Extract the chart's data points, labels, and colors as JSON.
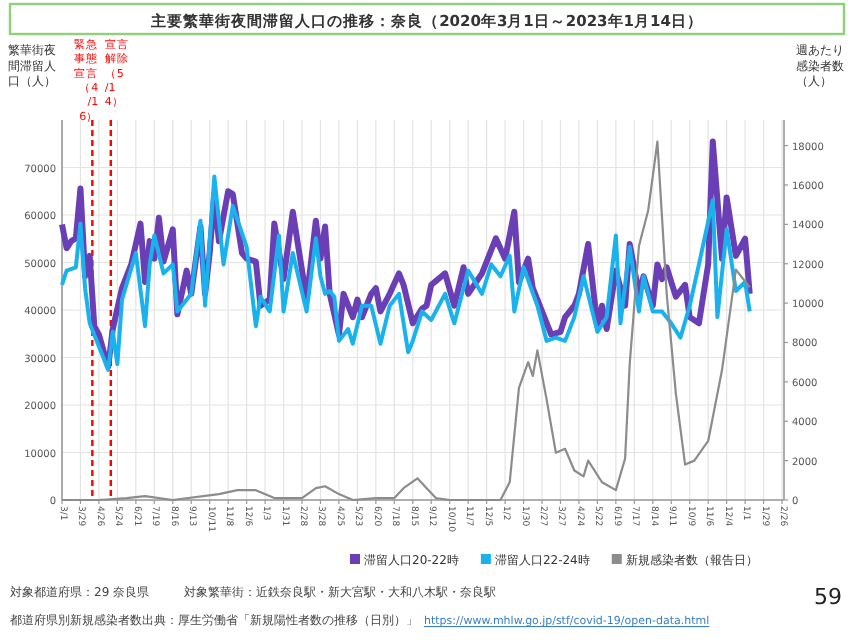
{
  "chart_data": {
    "type": "line",
    "title": "主要繁華街夜間滞留人口の推移：奈良（2020年3月1日～2023年1月14日）",
    "ylabel": "繁華街夜間滞留人口（人）",
    "y2label": "週あたり感染者数（人）",
    "xlim": [
      "2020-03-01",
      "2023-03-01"
    ],
    "xticks": [
      {
        "value": "2020-03-01",
        "label": "3/1"
      },
      {
        "value": "2020-03-29",
        "label": "3/29"
      },
      {
        "value": "2020-04-26",
        "label": "4/26"
      },
      {
        "value": "2020-05-24",
        "label": "5/24"
      },
      {
        "value": "2020-06-21",
        "label": "6/21"
      },
      {
        "value": "2020-07-19",
        "label": "7/19"
      },
      {
        "value": "2020-08-16",
        "label": "8/16"
      },
      {
        "value": "2020-09-13",
        "label": "9/13"
      },
      {
        "value": "2020-10-11",
        "label": "10/11"
      },
      {
        "value": "2020-11-08",
        "label": "11/8"
      },
      {
        "value": "2020-12-06",
        "label": "12/6"
      },
      {
        "value": "2021-01-03",
        "label": "1/3"
      },
      {
        "value": "2021-01-31",
        "label": "1/31"
      },
      {
        "value": "2021-02-28",
        "label": "2/28"
      },
      {
        "value": "2021-03-28",
        "label": "3/28"
      },
      {
        "value": "2021-04-25",
        "label": "4/25"
      },
      {
        "value": "2021-05-23",
        "label": "5/23"
      },
      {
        "value": "2021-06-20",
        "label": "6/20"
      },
      {
        "value": "2021-07-18",
        "label": "7/18"
      },
      {
        "value": "2021-08-15",
        "label": "8/15"
      },
      {
        "value": "2021-09-12",
        "label": "9/12"
      },
      {
        "value": "2021-10-10",
        "label": "10/10"
      },
      {
        "value": "2021-11-07",
        "label": "11/7"
      },
      {
        "value": "2021-12-05",
        "label": "12/5"
      },
      {
        "value": "2022-01-02",
        "label": "1/2"
      },
      {
        "value": "2022-01-30",
        "label": "1/30"
      },
      {
        "value": "2022-02-27",
        "label": "2/27"
      },
      {
        "value": "2022-03-27",
        "label": "3/27"
      },
      {
        "value": "2022-04-24",
        "label": "4/24"
      },
      {
        "value": "2022-05-22",
        "label": "5/22"
      },
      {
        "value": "2022-06-19",
        "label": "6/19"
      },
      {
        "value": "2022-07-17",
        "label": "7/17"
      },
      {
        "value": "2022-08-14",
        "label": "8/14"
      },
      {
        "value": "2022-09-11",
        "label": "9/11"
      },
      {
        "value": "2022-10-09",
        "label": "10/9"
      },
      {
        "value": "2022-11-06",
        "label": "11/6"
      },
      {
        "value": "2022-12-04",
        "label": "12/4"
      },
      {
        "value": "2023-01-01",
        "label": "1/1"
      },
      {
        "value": "2023-01-29",
        "label": "1/29"
      },
      {
        "value": "2023-02-26",
        "label": "2/26"
      }
    ],
    "ylim": [
      0,
      80000
    ],
    "yticks": [
      0,
      10000,
      20000,
      30000,
      40000,
      50000,
      60000,
      70000
    ],
    "y2lim": [
      0,
      19300
    ],
    "y2ticks": [
      0,
      2000,
      4000,
      6000,
      8000,
      10000,
      12000,
      14000,
      16000,
      18000
    ],
    "grid": true,
    "legend": "bottom",
    "line_style": "solid",
    "series": [
      {
        "name": "滞留人口20-22時",
        "color": "#6a3fb5",
        "x": [
          "2020-03-01",
          "2020-03-08",
          "2020-03-15",
          "2020-03-22",
          "2020-03-29",
          "2020-04-05",
          "2020-04-12",
          "2020-04-19",
          "2020-04-26",
          "2020-05-10",
          "2020-05-17",
          "2020-05-31",
          "2020-06-14",
          "2020-06-28",
          "2020-07-05",
          "2020-07-12",
          "2020-07-19",
          "2020-07-26",
          "2020-08-02",
          "2020-08-16",
          "2020-08-23",
          "2020-09-06",
          "2020-09-13",
          "2020-09-27",
          "2020-10-04",
          "2020-10-11",
          "2020-10-18",
          "2020-10-25",
          "2020-11-08",
          "2020-11-15",
          "2020-11-29",
          "2020-12-06",
          "2020-12-20",
          "2020-12-27",
          "2021-01-10",
          "2021-01-17",
          "2021-01-31",
          "2021-02-14",
          "2021-03-07",
          "2021-03-21",
          "2021-03-28",
          "2021-04-04",
          "2021-04-11",
          "2021-04-25",
          "2021-05-02",
          "2021-05-16",
          "2021-05-23",
          "2021-05-30",
          "2021-06-13",
          "2021-06-20",
          "2021-06-27",
          "2021-07-11",
          "2021-07-25",
          "2021-08-01",
          "2021-08-15",
          "2021-08-29",
          "2021-09-05",
          "2021-09-12",
          "2021-10-03",
          "2021-10-17",
          "2021-10-31",
          "2021-11-07",
          "2021-11-28",
          "2021-12-19",
          "2022-01-02",
          "2022-01-16",
          "2022-01-23",
          "2022-02-06",
          "2022-02-13",
          "2022-02-20",
          "2022-03-13",
          "2022-03-27",
          "2022-04-03",
          "2022-04-17",
          "2022-04-24",
          "2022-05-08",
          "2022-05-22",
          "2022-05-29",
          "2022-06-05",
          "2022-06-19",
          "2022-07-03",
          "2022-07-10",
          "2022-07-24",
          "2022-07-31",
          "2022-08-14",
          "2022-08-21",
          "2022-08-28",
          "2022-09-04",
          "2022-09-18",
          "2022-10-02",
          "2022-10-09",
          "2022-10-23",
          "2022-11-06",
          "2022-11-13",
          "2022-11-27",
          "2022-12-04",
          "2022-12-18",
          "2023-01-01",
          "2023-01-08"
        ],
        "values": [
          58000,
          53000,
          54500,
          55100,
          65600,
          47100,
          51400,
          36600,
          34800,
          28000,
          36000,
          44600,
          49600,
          58200,
          45900,
          54500,
          50800,
          59400,
          50200,
          57000,
          39100,
          48300,
          43400,
          57600,
          43400,
          52000,
          64400,
          54500,
          65000,
          64400,
          52000,
          50800,
          50200,
          40900,
          42200,
          58200,
          46500,
          60700,
          42200,
          58800,
          50800,
          57600,
          43400,
          34800,
          43400,
          38500,
          42200,
          38500,
          43400,
          44600,
          39700,
          43400,
          47700,
          45300,
          37200,
          40300,
          40900,
          45300,
          47700,
          40900,
          49000,
          43400,
          47700,
          55100,
          50800,
          60700,
          45900,
          50800,
          44600,
          42200,
          34800,
          35400,
          38500,
          40900,
          43400,
          53900,
          36600,
          40900,
          36000,
          48300,
          40900,
          53900,
          43400,
          47100,
          40900,
          49600,
          46500,
          49000,
          42800,
          45300,
          38500,
          37200,
          49600,
          75500,
          50800,
          63700,
          51400,
          55000,
          43400
        ]
      },
      {
        "name": "滞留人口22-24時",
        "color": "#1ab2ec",
        "x": [
          "2020-03-01",
          "2020-03-08",
          "2020-03-22",
          "2020-03-29",
          "2020-04-05",
          "2020-04-12",
          "2020-05-10",
          "2020-05-17",
          "2020-05-24",
          "2020-05-31",
          "2020-06-21",
          "2020-07-05",
          "2020-07-12",
          "2020-07-19",
          "2020-08-02",
          "2020-08-16",
          "2020-08-23",
          "2020-09-13",
          "2020-09-27",
          "2020-10-04",
          "2020-10-18",
          "2020-11-01",
          "2020-11-15",
          "2020-12-06",
          "2020-12-20",
          "2020-12-27",
          "2021-01-10",
          "2021-01-24",
          "2021-01-31",
          "2021-02-14",
          "2021-03-07",
          "2021-03-21",
          "2021-03-28",
          "2021-04-04",
          "2021-04-11",
          "2021-04-18",
          "2021-04-25",
          "2021-05-09",
          "2021-05-16",
          "2021-05-30",
          "2021-06-13",
          "2021-06-27",
          "2021-07-11",
          "2021-07-25",
          "2021-08-08",
          "2021-08-15",
          "2021-08-29",
          "2021-09-12",
          "2021-10-03",
          "2021-10-17",
          "2021-11-07",
          "2021-11-28",
          "2021-12-12",
          "2021-12-26",
          "2022-01-09",
          "2022-01-16",
          "2022-01-30",
          "2022-02-20",
          "2022-03-06",
          "2022-03-20",
          "2022-04-03",
          "2022-04-17",
          "2022-05-01",
          "2022-05-22",
          "2022-06-05",
          "2022-06-19",
          "2022-06-26",
          "2022-07-10",
          "2022-07-24",
          "2022-07-31",
          "2022-08-14",
          "2022-08-28",
          "2022-09-11",
          "2022-09-25",
          "2022-10-09",
          "2022-10-23",
          "2022-11-13",
          "2022-11-20",
          "2022-12-04",
          "2022-12-18",
          "2023-01-01",
          "2023-01-08"
        ],
        "values": [
          45300,
          48300,
          49000,
          58200,
          44600,
          37200,
          27400,
          35400,
          28600,
          42200,
          52000,
          36600,
          49600,
          55700,
          47700,
          49600,
          39700,
          43400,
          58800,
          40900,
          68100,
          49600,
          61900,
          53300,
          36600,
          42800,
          39700,
          55700,
          39700,
          52000,
          39700,
          55100,
          47100,
          43400,
          44000,
          42800,
          33500,
          36000,
          32900,
          40900,
          40900,
          32900,
          40900,
          43400,
          31100,
          33500,
          39700,
          37900,
          43400,
          37200,
          48300,
          43400,
          49600,
          47100,
          51400,
          39700,
          49000,
          40900,
          33500,
          34200,
          33500,
          38500,
          47100,
          35400,
          38500,
          55700,
          37200,
          53300,
          39700,
          47100,
          39700,
          39700,
          37200,
          34200,
          40900,
          49600,
          63100,
          38500,
          57000,
          44000,
          45900,
          39700
        ]
      },
      {
        "name": "新規感染者数（報告日）",
        "color": "#8c8c8c",
        "axis": "y2",
        "x": [
          "2020-03-01",
          "2020-04-26",
          "2020-06-07",
          "2020-07-05",
          "2020-08-16",
          "2020-10-25",
          "2020-11-22",
          "2020-12-20",
          "2021-01-17",
          "2021-02-28",
          "2021-03-21",
          "2021-04-04",
          "2021-04-25",
          "2021-05-16",
          "2021-06-20",
          "2021-07-18",
          "2021-08-01",
          "2021-08-22",
          "2021-09-05",
          "2021-09-19",
          "2021-10-10",
          "2021-12-26",
          "2022-01-09",
          "2022-01-23",
          "2022-02-06",
          "2022-02-13",
          "2022-02-20",
          "2022-03-06",
          "2022-03-20",
          "2022-04-03",
          "2022-04-17",
          "2022-05-01",
          "2022-05-08",
          "2022-05-29",
          "2022-06-19",
          "2022-07-03",
          "2022-07-10",
          "2022-07-24",
          "2022-08-07",
          "2022-08-21",
          "2022-09-04",
          "2022-09-18",
          "2022-10-02",
          "2022-10-16",
          "2022-11-06",
          "2022-11-27",
          "2022-12-18",
          "2022-12-25",
          "2023-01-08"
        ],
        "values": [
          0,
          0,
          100,
          200,
          0,
          300,
          500,
          500,
          100,
          100,
          600,
          700,
          300,
          0,
          100,
          100,
          600,
          1100,
          600,
          100,
          0,
          0,
          900,
          5700,
          7000,
          6300,
          7600,
          5100,
          2400,
          2600,
          1500,
          1200,
          2000,
          900,
          500,
          2100,
          6900,
          12900,
          14700,
          18200,
          10500,
          5400,
          1800,
          2000,
          3000,
          6600,
          11700,
          11400,
          10800
        ]
      }
    ],
    "ref_lines": [
      {
        "axis": "x",
        "value": "2020-04-16",
        "label": "緊急事態宣言（4/16）",
        "color": "#ff0000",
        "line_style": "dashed"
      },
      {
        "axis": "x",
        "value": "2020-05-14",
        "label": "宣言解除（5/14）",
        "color": "#ff0000",
        "line_style": "dashed"
      }
    ],
    "annotations": [
      "対象都道府県：29 奈良県",
      "対象繁華街：近鉄奈良駅・新大宮駅・大和八木駅・奈良駅",
      "都道府県別新規感染者数出典：厚生労働省「新規陽性者数の推移（日別）」",
      "https://www.mhlw.go.jp/stf/covid-19/open-data.html",
      "59"
    ]
  }
}
